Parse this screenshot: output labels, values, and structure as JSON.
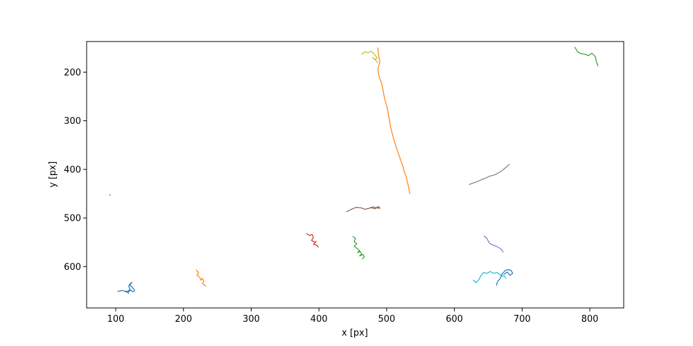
{
  "chart_data": {
    "type": "line",
    "title": "",
    "xlabel": "x [px]",
    "ylabel": "y [px]",
    "xlim": [
      57,
      850
    ],
    "ylim": [
      685,
      137
    ],
    "y_inverted": true,
    "grid": false,
    "legend": "none",
    "x_ticks": [
      100,
      200,
      300,
      400,
      500,
      600,
      700,
      800
    ],
    "y_ticks": [
      200,
      300,
      400,
      500,
      600
    ],
    "series": [
      {
        "color": "#1f77b4",
        "x": [
          103,
          110,
          115,
          119,
          121,
          119,
          122,
          124,
          120,
          123,
          126,
          128,
          125,
          122,
          118,
          115,
          119
        ],
        "y": [
          651,
          649,
          652,
          650,
          646,
          640,
          636,
          632,
          637,
          641,
          645,
          649,
          652,
          648,
          653,
          650,
          655
        ]
      },
      {
        "color": "#ff7f0e",
        "x": [
          219,
          222,
          220,
          224,
          226,
          228,
          230,
          228,
          231,
          233
        ],
        "y": [
          607,
          612,
          618,
          622,
          628,
          624,
          630,
          634,
          638,
          640
        ]
      },
      {
        "color": "#d62728",
        "x": [
          382,
          386,
          390,
          392,
          389,
          394,
          396,
          392,
          397,
          399
        ],
        "y": [
          532,
          536,
          534,
          540,
          546,
          550,
          548,
          554,
          556,
          560
        ]
      },
      {
        "color": "#2ca02c",
        "x": [
          450,
          454,
          452,
          456,
          452,
          456,
          460,
          457,
          461,
          463,
          460,
          465,
          467,
          464
        ],
        "y": [
          538,
          542,
          548,
          553,
          558,
          562,
          567,
          571,
          569,
          574,
          578,
          575,
          580,
          584
        ]
      },
      {
        "color": "#8c564b",
        "x": [
          441,
          448,
          455,
          462,
          468,
          474,
          480,
          485,
          490,
          488,
          483,
          477
        ],
        "y": [
          487,
          482,
          478,
          479,
          482,
          480,
          477,
          479,
          480,
          476,
          481,
          479
        ]
      },
      {
        "color": "#e377c2",
        "x": [
          91,
          92,
          91
        ],
        "y": [
          451,
          454,
          453
        ]
      },
      {
        "color": "#ff7f0e",
        "x": [
          487,
          488,
          490,
          487,
          489,
          493,
          495,
          497,
          500,
          502,
          504,
          506,
          509,
          512,
          515,
          518,
          521,
          524,
          526,
          529,
          531,
          533,
          534
        ],
        "y": [
          150,
          165,
          178,
          195,
          210,
          225,
          240,
          255,
          268,
          282,
          298,
          314,
          330,
          345,
          358,
          370,
          382,
          394,
          405,
          416,
          428,
          440,
          450
        ]
      },
      {
        "color": "#bcbd22",
        "x": [
          463,
          468,
          473,
          477,
          481,
          484,
          486,
          483,
          479,
          485,
          487
        ],
        "y": [
          163,
          158,
          160,
          157,
          162,
          167,
          171,
          174,
          170,
          177,
          180
        ]
      },
      {
        "color": "#7f7f7f",
        "x": [
          622,
          628,
          634,
          640,
          646,
          652,
          658,
          664,
          670,
          676,
          681
        ],
        "y": [
          431,
          428,
          425,
          421,
          418,
          414,
          412,
          408,
          403,
          396,
          390
        ]
      },
      {
        "color": "#9467bd",
        "x": [
          644,
          648,
          651,
          653,
          658,
          663,
          667,
          670,
          672
        ],
        "y": [
          537,
          542,
          550,
          553,
          556,
          559,
          562,
          566,
          570
        ]
      },
      {
        "color": "#17becf",
        "x": [
          628,
          632,
          636,
          639,
          643,
          648,
          653,
          658,
          663,
          668,
          671,
          674,
          676
        ],
        "y": [
          628,
          633,
          627,
          619,
          612,
          614,
          610,
          614,
          612,
          617,
          620,
          619,
          624
        ]
      },
      {
        "color": "#1f77b4",
        "x": [
          662,
          664,
          667,
          669,
          671,
          675,
          680,
          684,
          686,
          682,
          678,
          673
        ],
        "y": [
          638,
          630,
          626,
          620,
          614,
          608,
          606,
          608,
          614,
          618,
          611,
          616
        ]
      },
      {
        "color": "#2ca02c",
        "x": [
          778,
          782,
          787,
          793,
          798,
          803,
          808,
          810,
          812
        ],
        "y": [
          149,
          158,
          162,
          163,
          166,
          161,
          168,
          180,
          187
        ]
      }
    ]
  }
}
